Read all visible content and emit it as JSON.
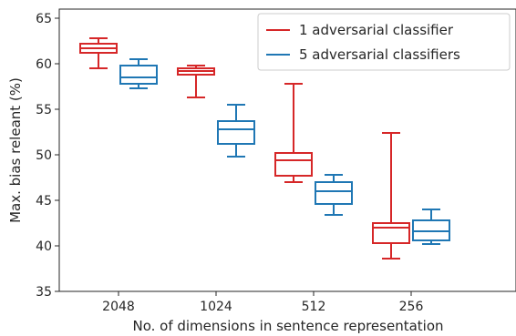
{
  "chart_data": {
    "type": "boxplot",
    "title": "",
    "xlabel": "No. of dimensions in sentence representation",
    "ylabel": "Max. bias releant (%)",
    "ylim": [
      35,
      66
    ],
    "yticks": [
      35,
      40,
      45,
      50,
      55,
      60,
      65
    ],
    "categories": [
      "2048",
      "1024",
      "512",
      "256"
    ],
    "legend_position": "top-right",
    "grid": false,
    "series": [
      {
        "name": "1 adversarial classifier",
        "color": "#d62728",
        "boxes": [
          {
            "min": 59.5,
            "q1": 61.2,
            "median": 61.7,
            "q3": 62.2,
            "max": 62.8
          },
          {
            "min": 56.3,
            "q1": 58.8,
            "median": 59.2,
            "q3": 59.5,
            "max": 59.8
          },
          {
            "min": 47.0,
            "q1": 47.7,
            "median": 49.4,
            "q3": 50.2,
            "max": 57.8
          },
          {
            "min": 38.6,
            "q1": 40.3,
            "median": 42.0,
            "q3": 42.5,
            "max": 52.4
          }
        ]
      },
      {
        "name": "5 adversarial classifiers",
        "color": "#1f77b4",
        "boxes": [
          {
            "min": 57.3,
            "q1": 57.8,
            "median": 58.5,
            "q3": 59.8,
            "max": 60.5
          },
          {
            "min": 49.8,
            "q1": 51.2,
            "median": 52.8,
            "q3": 53.7,
            "max": 55.5
          },
          {
            "min": 43.4,
            "q1": 44.6,
            "median": 46.0,
            "q3": 47.0,
            "max": 47.8
          },
          {
            "min": 40.2,
            "q1": 40.6,
            "median": 41.6,
            "q3": 42.8,
            "max": 44.0
          }
        ]
      }
    ]
  }
}
